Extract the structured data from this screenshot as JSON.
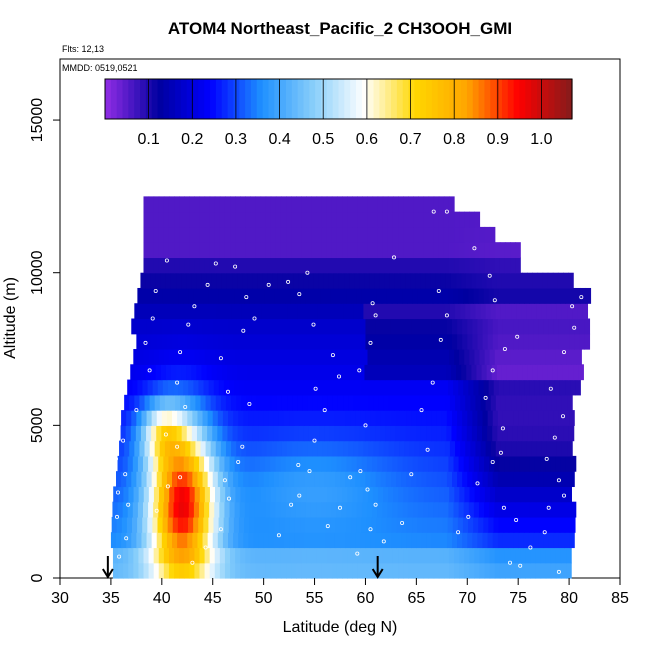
{
  "chart_data": {
    "type": "heatmap",
    "title": "ATOM4 Northeast_Pacific_2 CH3OOH_GMI",
    "flights_label": "Flts: 12,13",
    "mmdd_label": "MMDD: 0519,0521",
    "xlabel": "Latitude (deg N)",
    "ylabel": "Altitude (m)",
    "xlim": [
      30,
      85
    ],
    "ylim": [
      0,
      17000
    ],
    "xticks": [
      30,
      35,
      40,
      45,
      50,
      55,
      60,
      65,
      70,
      75,
      80,
      85
    ],
    "yticks": [
      0,
      5000,
      10000,
      15000
    ],
    "colorbar": {
      "range": [
        0,
        1.07
      ],
      "ticks": [
        0.1,
        0.2,
        0.3,
        0.4,
        0.5,
        0.6,
        0.7,
        0.8,
        0.9,
        1.0
      ],
      "colors": [
        "#8a2be2",
        "#0000a0",
        "#0000ff",
        "#1e90ff",
        "#87cefa",
        "#ffffff",
        "#ffd700",
        "#ffa500",
        "#ff0000",
        "#8b1a1a"
      ]
    },
    "arrows_latitude": [
      34.7,
      61.2
    ],
    "curtain_profile": {
      "bottom_left_lat": [
        35.5,
        36.5,
        37.0,
        38.0,
        39.0
      ],
      "top_altitude_by_lat": [
        [
          38.5,
          12500
        ],
        [
          68.5,
          12500
        ],
        [
          71,
          11800
        ],
        [
          73,
          11000
        ],
        [
          75,
          10700
        ],
        [
          80,
          10000
        ],
        [
          82,
          9500
        ],
        [
          82,
          9000
        ],
        [
          81,
          7000
        ],
        [
          80,
          5000
        ],
        [
          80,
          0
        ]
      ]
    },
    "flight_track": [
      [
        34.9,
        500
      ],
      [
        35.8,
        700
      ],
      [
        36.5,
        1300
      ],
      [
        35.6,
        2000
      ],
      [
        36.7,
        2400
      ],
      [
        35.7,
        2800
      ],
      [
        36.4,
        3400
      ],
      [
        35.5,
        3900
      ],
      [
        36.2,
        4500
      ],
      [
        37.5,
        5500
      ],
      [
        38.8,
        6800
      ],
      [
        38.4,
        7700
      ],
      [
        39.1,
        8500
      ],
      [
        39.4,
        9400
      ],
      [
        40.5,
        10400
      ],
      [
        38.0,
        12200
      ],
      [
        39.5,
        2200
      ],
      [
        40.6,
        3000
      ],
      [
        41.8,
        3300
      ],
      [
        41.5,
        4300
      ],
      [
        40.4,
        4700
      ],
      [
        42.3,
        5600
      ],
      [
        41.5,
        6400
      ],
      [
        41.8,
        7400
      ],
      [
        42.6,
        8300
      ],
      [
        43.2,
        8900
      ],
      [
        44.5,
        9600
      ],
      [
        45.3,
        10300
      ],
      [
        47.2,
        10200
      ],
      [
        43.0,
        500
      ],
      [
        44.3,
        1000
      ],
      [
        45.8,
        1600
      ],
      [
        46.6,
        2600
      ],
      [
        46.2,
        3200
      ],
      [
        47.5,
        3800
      ],
      [
        47.9,
        4300
      ],
      [
        48.6,
        5700
      ],
      [
        46.5,
        6100
      ],
      [
        45.8,
        7200
      ],
      [
        48.0,
        8100
      ],
      [
        49.1,
        8500
      ],
      [
        48.3,
        9200
      ],
      [
        50.5,
        9600
      ],
      [
        51.5,
        1400
      ],
      [
        52.7,
        2400
      ],
      [
        53.5,
        2700
      ],
      [
        54.5,
        3500
      ],
      [
        53.4,
        3700
      ],
      [
        55.0,
        4500
      ],
      [
        56.0,
        5500
      ],
      [
        55.1,
        6200
      ],
      [
        57.4,
        6600
      ],
      [
        56.8,
        7300
      ],
      [
        54.9,
        8300
      ],
      [
        53.5,
        9300
      ],
      [
        52.4,
        9700
      ],
      [
        54.3,
        10000
      ],
      [
        56.3,
        1700
      ],
      [
        57.5,
        2300
      ],
      [
        58.5,
        3300
      ],
      [
        59.5,
        3500
      ],
      [
        60.2,
        2900
      ],
      [
        61.0,
        2400
      ],
      [
        60.5,
        1600
      ],
      [
        61.8,
        1200
      ],
      [
        59.2,
        800
      ],
      [
        60.0,
        5000
      ],
      [
        59.4,
        6800
      ],
      [
        60.5,
        7700
      ],
      [
        61.0,
        8600
      ],
      [
        60.7,
        9000
      ],
      [
        62.8,
        10500
      ],
      [
        63.6,
        1800
      ],
      [
        64.5,
        3400
      ],
      [
        66.1,
        4200
      ],
      [
        65.5,
        5500
      ],
      [
        66.6,
        6400
      ],
      [
        67.4,
        7800
      ],
      [
        68.0,
        8600
      ],
      [
        67.2,
        9400
      ],
      [
        66.7,
        12000
      ],
      [
        68.0,
        12000
      ],
      [
        69.1,
        1500
      ],
      [
        70.1,
        2000
      ],
      [
        71.0,
        3100
      ],
      [
        72.5,
        3800
      ],
      [
        73.3,
        4100
      ],
      [
        73.6,
        2300
      ],
      [
        74.8,
        1900
      ],
      [
        74.2,
        500
      ],
      [
        75.2,
        400
      ],
      [
        73.5,
        4900
      ],
      [
        71.8,
        5900
      ],
      [
        72.5,
        6800
      ],
      [
        73.7,
        7500
      ],
      [
        74.9,
        7900
      ],
      [
        72.7,
        9100
      ],
      [
        72.2,
        9900
      ],
      [
        70.7,
        10800
      ],
      [
        76.2,
        1000
      ],
      [
        77.6,
        1500
      ],
      [
        78.0,
        2300
      ],
      [
        79.0,
        3200
      ],
      [
        77.8,
        3900
      ],
      [
        78.6,
        4600
      ],
      [
        79.4,
        5300
      ],
      [
        78.2,
        6200
      ],
      [
        79.5,
        7400
      ],
      [
        80.5,
        8200
      ],
      [
        80.3,
        8900
      ],
      [
        81.2,
        9200
      ],
      [
        79.5,
        2700
      ],
      [
        79.0,
        200
      ]
    ]
  }
}
